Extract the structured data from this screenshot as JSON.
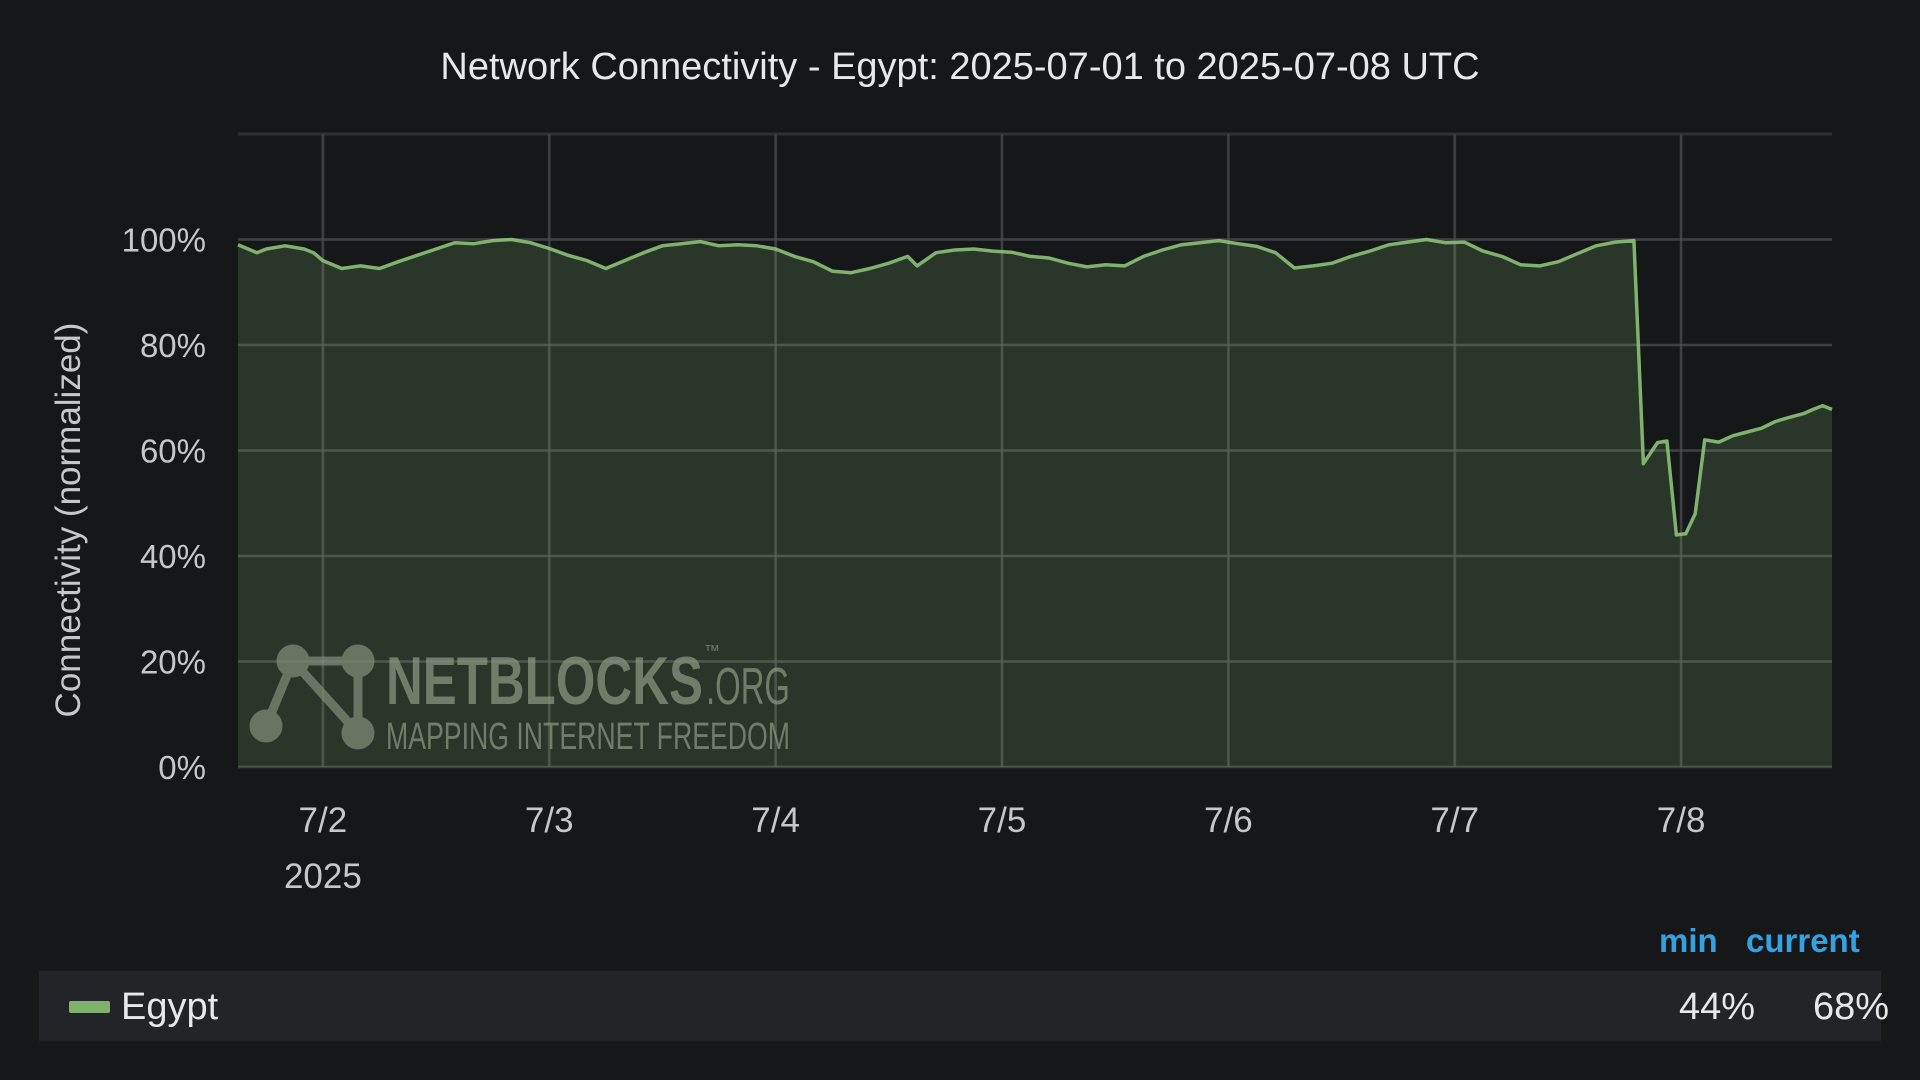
{
  "chart_data": {
    "type": "area",
    "title": "Network Connectivity - Egypt: 2025-07-01 to 2025-07-08 UTC",
    "ylabel": "Connectivity (normalized)",
    "xlabel": "",
    "x_range": [
      "2025-07-01T15:00",
      "2025-07-08T16:00"
    ],
    "ylim": [
      0,
      120
    ],
    "y_ticks": [
      "0%",
      "20%",
      "40%",
      "60%",
      "80%",
      "100%"
    ],
    "y_tick_values": [
      0,
      20,
      40,
      60,
      80,
      100
    ],
    "x_ticks": [
      "7/2",
      "7/3",
      "7/4",
      "7/5",
      "7/6",
      "7/7",
      "7/8"
    ],
    "x_tick_dates": [
      "2025-07-02T00:00",
      "2025-07-03T00:00",
      "2025-07-04T00:00",
      "2025-07-05T00:00",
      "2025-07-06T00:00",
      "2025-07-07T00:00",
      "2025-07-08T00:00"
    ],
    "x_year_label": "2025",
    "grid": true,
    "legend_position": "bottom",
    "series": [
      {
        "name": "Egypt",
        "color": "#7eb26d",
        "points": [
          [
            "2025-07-01T15:00",
            99
          ],
          [
            "2025-07-01T17:00",
            97.5
          ],
          [
            "2025-07-01T18:00",
            98.2
          ],
          [
            "2025-07-01T20:00",
            98.8
          ],
          [
            "2025-07-01T22:00",
            98.2
          ],
          [
            "2025-07-01T23:00",
            97.5
          ],
          [
            "2025-07-02T00:00",
            96
          ],
          [
            "2025-07-02T02:00",
            94.5
          ],
          [
            "2025-07-02T04:00",
            95
          ],
          [
            "2025-07-02T06:00",
            94.5
          ],
          [
            "2025-07-02T08:00",
            95.8
          ],
          [
            "2025-07-02T10:00",
            97
          ],
          [
            "2025-07-02T12:00",
            98.2
          ],
          [
            "2025-07-02T14:00",
            99.4
          ],
          [
            "2025-07-02T16:00",
            99.2
          ],
          [
            "2025-07-02T18:00",
            99.8
          ],
          [
            "2025-07-02T20:00",
            100
          ],
          [
            "2025-07-02T22:00",
            99.4
          ],
          [
            "2025-07-03T00:00",
            98.3
          ],
          [
            "2025-07-03T02:00",
            97
          ],
          [
            "2025-07-03T04:00",
            96
          ],
          [
            "2025-07-03T06:00",
            94.5
          ],
          [
            "2025-07-03T08:00",
            96
          ],
          [
            "2025-07-03T10:00",
            97.5
          ],
          [
            "2025-07-03T12:00",
            98.8
          ],
          [
            "2025-07-03T14:00",
            99.2
          ],
          [
            "2025-07-03T16:00",
            99.6
          ],
          [
            "2025-07-03T18:00",
            98.8
          ],
          [
            "2025-07-03T20:00",
            99
          ],
          [
            "2025-07-03T22:00",
            98.8
          ],
          [
            "2025-07-04T00:00",
            98.2
          ],
          [
            "2025-07-04T02:00",
            96.8
          ],
          [
            "2025-07-04T04:00",
            95.8
          ],
          [
            "2025-07-04T06:00",
            94
          ],
          [
            "2025-07-04T08:00",
            93.7
          ],
          [
            "2025-07-04T10:00",
            94.5
          ],
          [
            "2025-07-04T12:00",
            95.5
          ],
          [
            "2025-07-04T14:00",
            96.8
          ],
          [
            "2025-07-04T15:00",
            95
          ],
          [
            "2025-07-04T17:00",
            97.5
          ],
          [
            "2025-07-04T19:00",
            98
          ],
          [
            "2025-07-04T21:00",
            98.2
          ],
          [
            "2025-07-04T23:00",
            97.8
          ],
          [
            "2025-07-05T01:00",
            97.6
          ],
          [
            "2025-07-05T03:00",
            96.8
          ],
          [
            "2025-07-05T05:00",
            96.5
          ],
          [
            "2025-07-05T07:00",
            95.5
          ],
          [
            "2025-07-05T09:00",
            94.8
          ],
          [
            "2025-07-05T11:00",
            95.2
          ],
          [
            "2025-07-05T13:00",
            95
          ],
          [
            "2025-07-05T15:00",
            96.8
          ],
          [
            "2025-07-05T17:00",
            98
          ],
          [
            "2025-07-05T19:00",
            99
          ],
          [
            "2025-07-05T21:00",
            99.4
          ],
          [
            "2025-07-05T23:00",
            99.8
          ],
          [
            "2025-07-06T01:00",
            99.2
          ],
          [
            "2025-07-06T03:00",
            98.7
          ],
          [
            "2025-07-06T05:00",
            97.5
          ],
          [
            "2025-07-06T07:00",
            94.6
          ],
          [
            "2025-07-06T09:00",
            95
          ],
          [
            "2025-07-06T11:00",
            95.5
          ],
          [
            "2025-07-06T13:00",
            96.8
          ],
          [
            "2025-07-06T15:00",
            97.8
          ],
          [
            "2025-07-06T17:00",
            99
          ],
          [
            "2025-07-06T19:00",
            99.5
          ],
          [
            "2025-07-06T21:00",
            100
          ],
          [
            "2025-07-06T23:00",
            99.4
          ],
          [
            "2025-07-07T01:00",
            99.5
          ],
          [
            "2025-07-07T03:00",
            97.8
          ],
          [
            "2025-07-07T05:00",
            96.8
          ],
          [
            "2025-07-07T07:00",
            95.2
          ],
          [
            "2025-07-07T09:00",
            95
          ],
          [
            "2025-07-07T11:00",
            95.8
          ],
          [
            "2025-07-07T13:00",
            97.3
          ],
          [
            "2025-07-07T15:00",
            98.8
          ],
          [
            "2025-07-07T17:00",
            99.5
          ],
          [
            "2025-07-07T19:00",
            99.8
          ],
          [
            "2025-07-07T20:00",
            57.5
          ],
          [
            "2025-07-07T21:30",
            61.5
          ],
          [
            "2025-07-07T22:30",
            61.8
          ],
          [
            "2025-07-07T23:30",
            44
          ],
          [
            "2025-07-08T00:30",
            44.2
          ],
          [
            "2025-07-08T01:30",
            48
          ],
          [
            "2025-07-08T02:30",
            62
          ],
          [
            "2025-07-08T04:00",
            61.6
          ],
          [
            "2025-07-08T05:30",
            62.8
          ],
          [
            "2025-07-08T07:00",
            63.5
          ],
          [
            "2025-07-08T08:30",
            64.2
          ],
          [
            "2025-07-08T10:00",
            65.5
          ],
          [
            "2025-07-08T11:30",
            66.3
          ],
          [
            "2025-07-08T13:00",
            67
          ],
          [
            "2025-07-08T14:00",
            67.8
          ],
          [
            "2025-07-08T15:00",
            68.5
          ],
          [
            "2025-07-08T16:00",
            67.8
          ]
        ]
      }
    ]
  },
  "legend": {
    "headers": {
      "min": "min",
      "current": "current"
    },
    "rows": [
      {
        "name": "Egypt",
        "min": "44%",
        "current": "68%",
        "color": "#7eb26d"
      }
    ]
  },
  "watermark": {
    "brand": "NETBLOCKS",
    "tm": "™",
    "suffix": ".ORG",
    "tagline": "MAPPING INTERNET FREEDOM"
  }
}
